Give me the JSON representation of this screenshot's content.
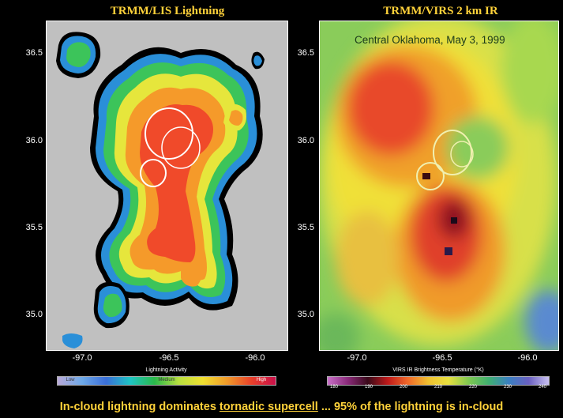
{
  "left_panel": {
    "title": "TRMM/LIS Lightning",
    "y_ticks": [
      "36.5",
      "36.0",
      "35.5",
      "35.0"
    ],
    "x_ticks": [
      "-97.0",
      "-96.5",
      "-96.0"
    ],
    "colorbar_label": "Lightning Activity",
    "colorbar_ticks": [
      "Low",
      "Medium",
      "High"
    ]
  },
  "right_panel": {
    "title": "TRMM/VIRS 2 km IR",
    "annotation": "Central Oklahoma, May 3, 1999",
    "y_ticks": [
      "36.5",
      "36.0",
      "35.5",
      "35.0"
    ],
    "x_ticks": [
      "-97.0",
      "-96.5",
      "-96.0"
    ],
    "colorbar_label": "VIRS IR Brightness Temperature (°K)",
    "colorbar_ticks": [
      "180",
      "190",
      "200",
      "210",
      "220",
      "230",
      "240"
    ]
  },
  "caption": {
    "part1": "In-cloud lightning dominates ",
    "part2": "tornadic supercell",
    "part3": " ... 95% of the lightning is in-cloud"
  },
  "colors": {
    "title_yellow": "#ffd23a",
    "background": "#000000",
    "map_grey": "#c0c0c0"
  }
}
